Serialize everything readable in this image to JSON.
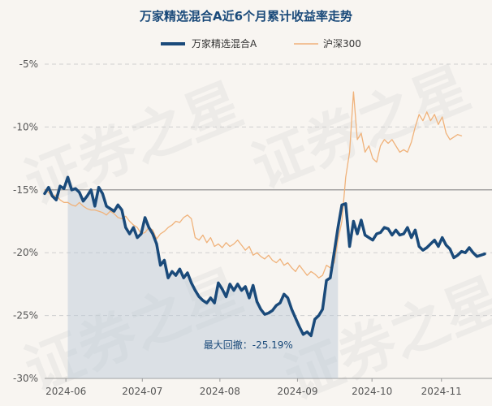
{
  "chart_data": {
    "type": "line",
    "title": "万家精选混合A近6个月累计收益率走势",
    "legend": {
      "position": "top",
      "entries": [
        "万家精选混合A",
        "沪深300"
      ]
    },
    "y_ticks": [
      "-5%",
      "-10%",
      "-15%",
      "-20%",
      "-25%",
      "-30%"
    ],
    "ylim": [
      -30,
      -5
    ],
    "x_ticks": [
      {
        "label": "2024-06",
        "t": 0.055
      },
      {
        "label": "2024-07",
        "t": 0.253
      },
      {
        "label": "2024-08",
        "t": 0.454
      },
      {
        "label": "2024-09",
        "t": 0.655
      },
      {
        "label": "2024-10",
        "t": 0.848
      },
      {
        "label": "2024-11",
        "t": 1.028
      }
    ],
    "max_drawdown": {
      "label": "最大回撤：-25.19%",
      "start_t": 0.055,
      "end_t": 0.76,
      "peak_value": -15.0,
      "trough_value": -26.8
    },
    "series": [
      {
        "name": "万家精选混合A",
        "color": "#1a4a7a",
        "points": [
          [
            0.0,
            -15.3
          ],
          [
            0.01,
            -14.8
          ],
          [
            0.02,
            -15.5
          ],
          [
            0.03,
            -15.8
          ],
          [
            0.04,
            -14.7
          ],
          [
            0.05,
            -14.9
          ],
          [
            0.06,
            -14.0
          ],
          [
            0.07,
            -15.0
          ],
          [
            0.08,
            -14.9
          ],
          [
            0.09,
            -15.2
          ],
          [
            0.1,
            -15.9
          ],
          [
            0.11,
            -15.5
          ],
          [
            0.12,
            -15.0
          ],
          [
            0.13,
            -16.3
          ],
          [
            0.14,
            -14.8
          ],
          [
            0.15,
            -15.3
          ],
          [
            0.16,
            -16.3
          ],
          [
            0.17,
            -16.5
          ],
          [
            0.18,
            -16.7
          ],
          [
            0.19,
            -16.2
          ],
          [
            0.2,
            -16.6
          ],
          [
            0.21,
            -18.0
          ],
          [
            0.22,
            -18.5
          ],
          [
            0.23,
            -18.0
          ],
          [
            0.24,
            -18.8
          ],
          [
            0.25,
            -18.5
          ],
          [
            0.26,
            -17.2
          ],
          [
            0.27,
            -18.0
          ],
          [
            0.28,
            -18.5
          ],
          [
            0.29,
            -19.3
          ],
          [
            0.3,
            -21.0
          ],
          [
            0.31,
            -20.6
          ],
          [
            0.32,
            -22.0
          ],
          [
            0.33,
            -21.5
          ],
          [
            0.34,
            -21.8
          ],
          [
            0.35,
            -21.3
          ],
          [
            0.36,
            -22.0
          ],
          [
            0.37,
            -21.6
          ],
          [
            0.38,
            -22.4
          ],
          [
            0.39,
            -23.0
          ],
          [
            0.4,
            -23.5
          ],
          [
            0.41,
            -23.8
          ],
          [
            0.42,
            -24.0
          ],
          [
            0.43,
            -23.6
          ],
          [
            0.44,
            -24.0
          ],
          [
            0.45,
            -22.4
          ],
          [
            0.46,
            -22.9
          ],
          [
            0.47,
            -23.5
          ],
          [
            0.48,
            -22.5
          ],
          [
            0.49,
            -23.0
          ],
          [
            0.5,
            -22.5
          ],
          [
            0.51,
            -23.0
          ],
          [
            0.52,
            -22.7
          ],
          [
            0.53,
            -23.6
          ],
          [
            0.54,
            -22.6
          ],
          [
            0.55,
            -23.9
          ],
          [
            0.56,
            -24.5
          ],
          [
            0.57,
            -24.9
          ],
          [
            0.58,
            -24.8
          ],
          [
            0.59,
            -24.6
          ],
          [
            0.6,
            -24.2
          ],
          [
            0.61,
            -24.0
          ],
          [
            0.62,
            -23.3
          ],
          [
            0.63,
            -23.6
          ],
          [
            0.64,
            -24.5
          ],
          [
            0.65,
            -25.2
          ],
          [
            0.66,
            -25.9
          ],
          [
            0.67,
            -26.5
          ],
          [
            0.68,
            -26.3
          ],
          [
            0.69,
            -26.6
          ],
          [
            0.7,
            -25.3
          ],
          [
            0.71,
            -25.0
          ],
          [
            0.72,
            -24.5
          ],
          [
            0.73,
            -22.2
          ],
          [
            0.74,
            -22.0
          ],
          [
            0.75,
            -20.0
          ],
          [
            0.76,
            -18.0
          ],
          [
            0.77,
            -16.2
          ],
          [
            0.78,
            -16.1
          ],
          [
            0.79,
            -19.5
          ],
          [
            0.8,
            -17.5
          ],
          [
            0.81,
            -18.5
          ],
          [
            0.82,
            -17.4
          ],
          [
            0.83,
            -18.6
          ],
          [
            0.84,
            -18.8
          ],
          [
            0.85,
            -19.0
          ],
          [
            0.86,
            -18.5
          ],
          [
            0.87,
            -18.4
          ],
          [
            0.88,
            -18.0
          ],
          [
            0.89,
            -18.1
          ],
          [
            0.9,
            -18.6
          ],
          [
            0.91,
            -18.2
          ],
          [
            0.92,
            -18.6
          ],
          [
            0.93,
            -18.5
          ],
          [
            0.94,
            -18.0
          ],
          [
            0.95,
            -18.8
          ],
          [
            0.96,
            -18.2
          ],
          [
            0.97,
            -19.5
          ],
          [
            0.98,
            -19.8
          ],
          [
            0.99,
            -19.6
          ],
          [
            1.0,
            -19.3
          ],
          [
            1.01,
            -19.0
          ],
          [
            1.02,
            -19.5
          ],
          [
            1.03,
            -18.8
          ],
          [
            1.04,
            -19.4
          ],
          [
            1.05,
            -19.7
          ],
          [
            1.06,
            -20.4
          ],
          [
            1.07,
            -20.2
          ],
          [
            1.08,
            -19.9
          ],
          [
            1.09,
            -20.0
          ],
          [
            1.1,
            -19.6
          ],
          [
            1.11,
            -20.0
          ],
          [
            1.12,
            -20.3
          ],
          [
            1.13,
            -20.2
          ],
          [
            1.14,
            -20.1
          ]
        ]
      },
      {
        "name": "沪深300",
        "color": "#f0b27a",
        "points": [
          [
            0.0,
            -15.0
          ],
          [
            0.01,
            -15.2
          ],
          [
            0.02,
            -15.6
          ],
          [
            0.03,
            -15.4
          ],
          [
            0.04,
            -15.8
          ],
          [
            0.05,
            -16.0
          ],
          [
            0.06,
            -16.0
          ],
          [
            0.07,
            -16.2
          ],
          [
            0.08,
            -16.3
          ],
          [
            0.09,
            -16.0
          ],
          [
            0.1,
            -16.3
          ],
          [
            0.11,
            -16.5
          ],
          [
            0.12,
            -16.6
          ],
          [
            0.13,
            -16.6
          ],
          [
            0.14,
            -16.7
          ],
          [
            0.15,
            -16.8
          ],
          [
            0.16,
            -17.0
          ],
          [
            0.17,
            -16.7
          ],
          [
            0.18,
            -16.9
          ],
          [
            0.19,
            -17.2
          ],
          [
            0.2,
            -17.3
          ],
          [
            0.21,
            -17.1
          ],
          [
            0.22,
            -17.5
          ],
          [
            0.23,
            -17.8
          ],
          [
            0.24,
            -18.0
          ],
          [
            0.25,
            -18.5
          ],
          [
            0.26,
            -18.4
          ],
          [
            0.27,
            -18.0
          ],
          [
            0.28,
            -18.2
          ],
          [
            0.29,
            -18.9
          ],
          [
            0.3,
            -18.5
          ],
          [
            0.31,
            -18.3
          ],
          [
            0.32,
            -18.0
          ],
          [
            0.33,
            -17.8
          ],
          [
            0.34,
            -17.5
          ],
          [
            0.35,
            -17.6
          ],
          [
            0.36,
            -17.2
          ],
          [
            0.37,
            -17.0
          ],
          [
            0.38,
            -17.3
          ],
          [
            0.39,
            -18.8
          ],
          [
            0.4,
            -19.0
          ],
          [
            0.41,
            -18.6
          ],
          [
            0.42,
            -19.2
          ],
          [
            0.43,
            -18.8
          ],
          [
            0.44,
            -19.5
          ],
          [
            0.45,
            -19.3
          ],
          [
            0.46,
            -19.6
          ],
          [
            0.47,
            -19.2
          ],
          [
            0.48,
            -19.5
          ],
          [
            0.49,
            -19.3
          ],
          [
            0.5,
            -19.0
          ],
          [
            0.51,
            -19.4
          ],
          [
            0.52,
            -19.8
          ],
          [
            0.53,
            -19.5
          ],
          [
            0.54,
            -20.2
          ],
          [
            0.55,
            -20.0
          ],
          [
            0.56,
            -20.3
          ],
          [
            0.57,
            -20.5
          ],
          [
            0.58,
            -20.2
          ],
          [
            0.59,
            -20.6
          ],
          [
            0.6,
            -20.8
          ],
          [
            0.61,
            -20.5
          ],
          [
            0.62,
            -21.0
          ],
          [
            0.63,
            -20.8
          ],
          [
            0.64,
            -21.2
          ],
          [
            0.65,
            -21.5
          ],
          [
            0.66,
            -21.0
          ],
          [
            0.67,
            -21.4
          ],
          [
            0.68,
            -21.8
          ],
          [
            0.69,
            -21.5
          ],
          [
            0.7,
            -21.7
          ],
          [
            0.71,
            -22.0
          ],
          [
            0.72,
            -21.8
          ],
          [
            0.73,
            -21.0
          ],
          [
            0.74,
            -21.2
          ],
          [
            0.75,
            -20.8
          ],
          [
            0.76,
            -19.0
          ],
          [
            0.77,
            -17.5
          ],
          [
            0.78,
            -14.0
          ],
          [
            0.79,
            -12.0
          ],
          [
            0.8,
            -7.2
          ],
          [
            0.81,
            -11.0
          ],
          [
            0.82,
            -10.5
          ],
          [
            0.83,
            -12.0
          ],
          [
            0.84,
            -11.5
          ],
          [
            0.85,
            -12.5
          ],
          [
            0.86,
            -12.8
          ],
          [
            0.87,
            -11.5
          ],
          [
            0.88,
            -11.0
          ],
          [
            0.89,
            -11.3
          ],
          [
            0.9,
            -11.0
          ],
          [
            0.91,
            -11.5
          ],
          [
            0.92,
            -12.0
          ],
          [
            0.93,
            -11.8
          ],
          [
            0.94,
            -12.0
          ],
          [
            0.95,
            -11.2
          ],
          [
            0.96,
            -10.0
          ],
          [
            0.97,
            -9.0
          ],
          [
            0.98,
            -9.5
          ],
          [
            0.99,
            -8.8
          ],
          [
            1.0,
            -9.5
          ],
          [
            1.01,
            -9.0
          ],
          [
            1.02,
            -9.8
          ],
          [
            1.03,
            -9.2
          ],
          [
            1.04,
            -10.5
          ],
          [
            1.05,
            -11.0
          ],
          [
            1.06,
            -10.8
          ],
          [
            1.07,
            -10.6
          ],
          [
            1.08,
            -10.7
          ]
        ]
      }
    ],
    "watermark": "证券之星"
  }
}
